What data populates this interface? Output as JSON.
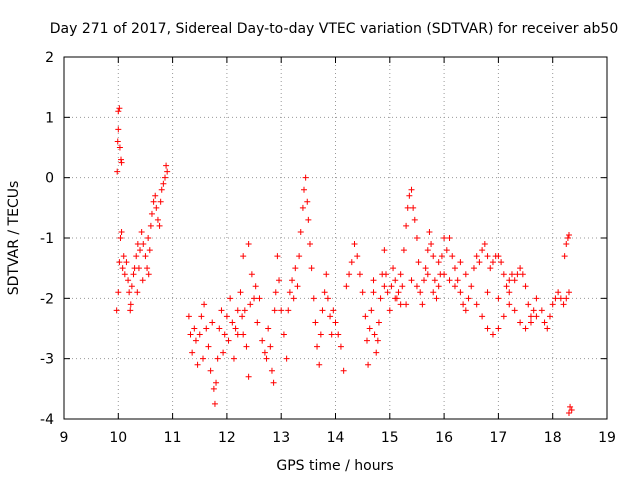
{
  "chart_data": {
    "type": "scatter",
    "title": "Day 271 of 2017, Sidereal Day-to-day VTEC variation (SDTVAR) for receiver ab50",
    "xlabel": "GPS time / hours",
    "ylabel": "SDTVAR / TECUs",
    "xlim": [
      9,
      19
    ],
    "ylim": [
      -4,
      2
    ],
    "xticks": [
      "9",
      "10",
      "11",
      "12",
      "13",
      "14",
      "15",
      "16",
      "17",
      "18",
      "19"
    ],
    "yticks": [
      "-4",
      "-3",
      "-2",
      "-1",
      "0",
      "1",
      "2"
    ],
    "grid": true,
    "marker": "+",
    "series": [
      {
        "name": "SDTVAR",
        "color": "#ff0000",
        "points": [
          [
            9.98,
            0.1
          ],
          [
            9.99,
            0.6
          ],
          [
            10.0,
            1.1
          ],
          [
            10.0,
            0.8
          ],
          [
            10.02,
            1.15
          ],
          [
            10.03,
            0.5
          ],
          [
            10.05,
            0.3
          ],
          [
            10.06,
            0.25
          ],
          [
            9.97,
            -2.2
          ],
          [
            10.0,
            -1.9
          ],
          [
            10.02,
            -1.4
          ],
          [
            10.04,
            -1.0
          ],
          [
            10.06,
            -0.9
          ],
          [
            10.08,
            -1.5
          ],
          [
            10.1,
            -1.3
          ],
          [
            10.12,
            -1.6
          ],
          [
            10.15,
            -1.4
          ],
          [
            10.18,
            -1.7
          ],
          [
            10.2,
            -1.9
          ],
          [
            10.23,
            -2.1
          ],
          [
            10.25,
            -1.8
          ],
          [
            10.28,
            -1.6
          ],
          [
            10.3,
            -1.5
          ],
          [
            10.33,
            -1.3
          ],
          [
            10.36,
            -1.1
          ],
          [
            10.38,
            -1.5
          ],
          [
            10.4,
            -1.2
          ],
          [
            10.43,
            -0.9
          ],
          [
            10.46,
            -1.1
          ],
          [
            10.5,
            -1.3
          ],
          [
            10.53,
            -1.5
          ],
          [
            10.56,
            -1.6
          ],
          [
            10.58,
            -1.2
          ],
          [
            10.6,
            -0.8
          ],
          [
            10.62,
            -0.6
          ],
          [
            10.65,
            -0.4
          ],
          [
            10.68,
            -0.3
          ],
          [
            10.7,
            -0.5
          ],
          [
            10.73,
            -0.7
          ],
          [
            10.76,
            -0.8
          ],
          [
            10.78,
            -0.4
          ],
          [
            10.8,
            -0.2
          ],
          [
            10.83,
            -0.1
          ],
          [
            10.86,
            0.0
          ],
          [
            10.88,
            0.2
          ],
          [
            10.9,
            0.1
          ],
          [
            10.55,
            -1.0
          ],
          [
            10.45,
            -1.7
          ],
          [
            10.35,
            -1.9
          ],
          [
            10.22,
            -2.2
          ],
          [
            11.3,
            -2.3
          ],
          [
            11.33,
            -2.6
          ],
          [
            11.36,
            -2.9
          ],
          [
            11.4,
            -2.5
          ],
          [
            11.43,
            -2.7
          ],
          [
            11.46,
            -3.1
          ],
          [
            11.5,
            -2.6
          ],
          [
            11.53,
            -2.3
          ],
          [
            11.56,
            -3.0
          ],
          [
            11.58,
            -2.1
          ],
          [
            11.62,
            -2.5
          ],
          [
            11.66,
            -2.8
          ],
          [
            11.7,
            -3.2
          ],
          [
            11.73,
            -2.4
          ],
          [
            11.76,
            -3.5
          ],
          [
            11.78,
            -3.75
          ],
          [
            11.8,
            -3.4
          ],
          [
            11.83,
            -3.0
          ],
          [
            11.86,
            -2.5
          ],
          [
            11.9,
            -2.2
          ],
          [
            11.93,
            -2.9
          ],
          [
            11.96,
            -2.6
          ],
          [
            12.0,
            -2.3
          ],
          [
            12.03,
            -2.7
          ],
          [
            12.06,
            -2.0
          ],
          [
            12.1,
            -2.4
          ],
          [
            12.13,
            -3.0
          ],
          [
            12.16,
            -2.5
          ],
          [
            12.2,
            -2.2
          ],
          [
            12.25,
            -1.9
          ],
          [
            12.28,
            -2.3
          ],
          [
            12.3,
            -2.6
          ],
          [
            12.33,
            -2.2
          ],
          [
            12.36,
            -2.8
          ],
          [
            12.4,
            -3.3
          ],
          [
            12.43,
            -2.1
          ],
          [
            12.46,
            -1.6
          ],
          [
            12.5,
            -2.0
          ],
          [
            12.53,
            -1.8
          ],
          [
            12.56,
            -2.4
          ],
          [
            12.6,
            -2.0
          ],
          [
            12.65,
            -2.7
          ],
          [
            12.7,
            -2.9
          ],
          [
            12.73,
            -3.0
          ],
          [
            12.76,
            -2.5
          ],
          [
            12.8,
            -2.8
          ],
          [
            12.83,
            -3.2
          ],
          [
            12.86,
            -3.4
          ],
          [
            12.88,
            -2.2
          ],
          [
            12.9,
            -1.9
          ],
          [
            12.93,
            -1.3
          ],
          [
            12.96,
            -1.7
          ],
          [
            13.0,
            -2.2
          ],
          [
            12.4,
            -1.1
          ],
          [
            12.3,
            -1.3
          ],
          [
            12.2,
            -2.6
          ],
          [
            13.05,
            -2.6
          ],
          [
            13.1,
            -3.0
          ],
          [
            13.13,
            -2.2
          ],
          [
            13.16,
            -1.9
          ],
          [
            13.2,
            -1.7
          ],
          [
            13.23,
            -2.0
          ],
          [
            13.26,
            -1.5
          ],
          [
            13.3,
            -1.8
          ],
          [
            13.33,
            -1.3
          ],
          [
            13.36,
            -0.9
          ],
          [
            13.4,
            -0.5
          ],
          [
            13.42,
            -0.2
          ],
          [
            13.45,
            0.0
          ],
          [
            13.48,
            -0.4
          ],
          [
            13.5,
            -0.7
          ],
          [
            13.53,
            -1.1
          ],
          [
            13.56,
            -1.5
          ],
          [
            13.6,
            -2.0
          ],
          [
            13.63,
            -2.4
          ],
          [
            13.66,
            -2.8
          ],
          [
            13.7,
            -3.1
          ],
          [
            13.73,
            -2.6
          ],
          [
            13.76,
            -2.2
          ],
          [
            13.8,
            -1.9
          ],
          [
            13.83,
            -1.6
          ],
          [
            13.86,
            -2.0
          ],
          [
            13.9,
            -2.3
          ],
          [
            13.93,
            -2.6
          ],
          [
            13.96,
            -2.2
          ],
          [
            14.0,
            -2.4
          ],
          [
            14.05,
            -2.6
          ],
          [
            14.1,
            -2.8
          ],
          [
            14.15,
            -3.2
          ],
          [
            14.2,
            -1.8
          ],
          [
            14.25,
            -1.6
          ],
          [
            14.3,
            -1.4
          ],
          [
            14.35,
            -1.1
          ],
          [
            14.4,
            -1.3
          ],
          [
            14.45,
            -1.6
          ],
          [
            14.5,
            -1.9
          ],
          [
            14.55,
            -2.3
          ],
          [
            14.58,
            -2.7
          ],
          [
            14.6,
            -3.1
          ],
          [
            14.63,
            -2.5
          ],
          [
            14.66,
            -2.2
          ],
          [
            14.7,
            -1.9
          ],
          [
            14.72,
            -2.6
          ],
          [
            14.75,
            -2.9
          ],
          [
            14.78,
            -2.7
          ],
          [
            14.8,
            -2.4
          ],
          [
            14.83,
            -2.0
          ],
          [
            14.86,
            -1.6
          ],
          [
            14.9,
            -1.2
          ],
          [
            14.93,
            -1.6
          ],
          [
            14.96,
            -1.9
          ],
          [
            15.0,
            -2.2
          ],
          [
            15.03,
            -1.8
          ],
          [
            15.06,
            -1.5
          ],
          [
            15.1,
            -1.7
          ],
          [
            15.13,
            -2.0
          ],
          [
            15.16,
            -1.9
          ],
          [
            15.2,
            -2.1
          ],
          [
            15.23,
            -1.8
          ],
          [
            15.26,
            -1.2
          ],
          [
            15.3,
            -0.8
          ],
          [
            15.33,
            -0.5
          ],
          [
            15.36,
            -0.3
          ],
          [
            15.4,
            -0.2
          ],
          [
            15.43,
            -0.5
          ],
          [
            15.46,
            -0.7
          ],
          [
            15.5,
            -1.0
          ],
          [
            15.53,
            -1.4
          ],
          [
            15.56,
            -1.9
          ],
          [
            15.6,
            -2.1
          ],
          [
            15.63,
            -1.7
          ],
          [
            15.66,
            -1.5
          ],
          [
            15.7,
            -1.2
          ],
          [
            15.73,
            -0.9
          ],
          [
            15.76,
            -1.1
          ],
          [
            15.8,
            -1.3
          ],
          [
            15.83,
            -1.7
          ],
          [
            15.86,
            -2.0
          ],
          [
            15.9,
            -1.8
          ],
          [
            15.93,
            -1.6
          ],
          [
            15.96,
            -1.3
          ],
          [
            16.0,
            -1.0
          ],
          [
            16.05,
            -1.2
          ],
          [
            16.1,
            -1.0
          ],
          [
            16.15,
            -1.3
          ],
          [
            16.2,
            -1.5
          ],
          [
            16.25,
            -1.7
          ],
          [
            16.3,
            -1.9
          ],
          [
            16.35,
            -2.1
          ],
          [
            16.4,
            -2.2
          ],
          [
            16.45,
            -2.0
          ],
          [
            16.5,
            -1.8
          ],
          [
            16.55,
            -1.5
          ],
          [
            16.6,
            -1.3
          ],
          [
            16.65,
            -1.4
          ],
          [
            16.7,
            -1.2
          ],
          [
            16.75,
            -1.1
          ],
          [
            16.8,
            -1.3
          ],
          [
            16.85,
            -1.5
          ],
          [
            16.9,
            -1.4
          ],
          [
            16.95,
            -1.3
          ],
          [
            17.0,
            -1.3
          ],
          [
            17.05,
            -1.4
          ],
          [
            17.1,
            -1.6
          ],
          [
            17.15,
            -1.8
          ],
          [
            17.2,
            -1.7
          ],
          [
            17.25,
            -1.6
          ],
          [
            17.3,
            -1.7
          ],
          [
            17.35,
            -1.6
          ],
          [
            17.4,
            -1.5
          ],
          [
            17.45,
            -1.6
          ],
          [
            17.5,
            -1.8
          ],
          [
            17.55,
            -2.1
          ],
          [
            17.6,
            -2.3
          ],
          [
            17.65,
            -2.2
          ],
          [
            17.7,
            -2.0
          ],
          [
            16.6,
            -2.1
          ],
          [
            16.7,
            -2.3
          ],
          [
            16.8,
            -2.5
          ],
          [
            16.9,
            -2.6
          ],
          [
            17.0,
            -2.5
          ],
          [
            17.1,
            -2.3
          ],
          [
            17.2,
            -2.1
          ],
          [
            17.3,
            -2.2
          ],
          [
            17.4,
            -2.4
          ],
          [
            17.5,
            -2.5
          ],
          [
            17.6,
            -2.4
          ],
          [
            17.7,
            -2.3
          ],
          [
            17.8,
            -2.2
          ],
          [
            17.85,
            -2.4
          ],
          [
            17.9,
            -2.5
          ],
          [
            17.95,
            -2.3
          ],
          [
            18.0,
            -2.1
          ],
          [
            18.05,
            -2.0
          ],
          [
            18.1,
            -1.9
          ],
          [
            18.15,
            -2.0
          ],
          [
            18.2,
            -2.1
          ],
          [
            18.25,
            -2.0
          ],
          [
            18.3,
            -1.9
          ],
          [
            18.22,
            -1.3
          ],
          [
            18.25,
            -1.1
          ],
          [
            18.28,
            -1.0
          ],
          [
            18.3,
            -0.95
          ],
          [
            18.32,
            -3.8
          ],
          [
            18.35,
            -3.85
          ],
          [
            18.3,
            -3.9
          ],
          [
            16.1,
            -1.7
          ],
          [
            16.3,
            -1.4
          ],
          [
            15.2,
            -1.6
          ],
          [
            15.4,
            -1.7
          ],
          [
            15.8,
            -1.9
          ],
          [
            16.0,
            -1.6
          ],
          [
            16.2,
            -1.8
          ],
          [
            16.4,
            -1.6
          ],
          [
            14.7,
            -1.7
          ],
          [
            14.9,
            -1.8
          ],
          [
            15.1,
            -2.0
          ],
          [
            15.3,
            -2.1
          ],
          [
            15.5,
            -1.8
          ],
          [
            15.7,
            -1.6
          ],
          [
            15.9,
            -1.4
          ],
          [
            16.8,
            -1.9
          ],
          [
            17.0,
            -2.0
          ],
          [
            17.2,
            -1.9
          ]
        ]
      }
    ]
  }
}
